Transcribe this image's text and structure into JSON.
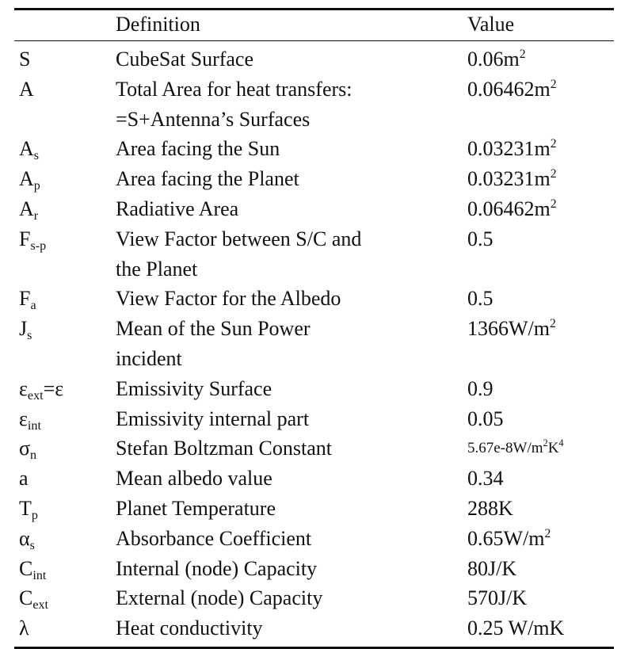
{
  "header": {
    "symbol": "",
    "definition": "Definition",
    "value": "Value"
  },
  "rows": [
    {
      "symbol": "S",
      "definition": [
        "CubeSat Surface"
      ],
      "value": "0.06m",
      "value_sup": "2"
    },
    {
      "symbol": "A",
      "definition": [
        "Total Area for heat transfers:",
        "=S+Antenna’s Surfaces"
      ],
      "value": "0.06462m",
      "value_sup": "2"
    },
    {
      "symbol": "A",
      "symbol_sub": "s",
      "definition": [
        "Area facing the Sun"
      ],
      "value": "0.03231m",
      "value_sup": "2"
    },
    {
      "symbol": "A",
      "symbol_sub": "p",
      "definition": [
        "Area facing the Planet"
      ],
      "value": "0.03231m",
      "value_sup": "2"
    },
    {
      "symbol": "A",
      "symbol_sub": "r",
      "definition": [
        "Radiative Area"
      ],
      "value": "0.06462m",
      "value_sup": "2"
    },
    {
      "symbol": "F",
      "symbol_sub": "s-p",
      "definition": [
        "View Factor between S/C and",
        "the Planet"
      ],
      "value": "0.5"
    },
    {
      "symbol": "F",
      "symbol_sub": "a",
      "definition": [
        "View Factor for the Albedo"
      ],
      "value": "0.5"
    },
    {
      "symbol": "J",
      "symbol_sub": "s",
      "definition": [
        "Mean of the Sun Power",
        "incident"
      ],
      "value": "1366W/m",
      "value_sup": "2"
    },
    {
      "symbol": "ε",
      "symbol_sub": "ext",
      "symbol_tail": "=ε",
      "definition": [
        "Emissivity Surface"
      ],
      "value": "0.9"
    },
    {
      "symbol": "ε",
      "symbol_sub": "int",
      "definition": [
        "Emissivity internal part"
      ],
      "value": "0.05"
    },
    {
      "symbol": "σ",
      "symbol_sub": "n",
      "definition": [
        "Stefan Boltzman Constant"
      ],
      "value": "5.67e-8W/m",
      "value_sup": "2",
      "value_tail": "K",
      "value_tail_sup": "4",
      "value_small": true
    },
    {
      "symbol": "a",
      "definition": [
        "Mean albedo value"
      ],
      "value": "0.34"
    },
    {
      "symbol": "T",
      "symbol_sub": "p",
      "definition": [
        "Planet Temperature"
      ],
      "value": "288K"
    },
    {
      "symbol": "α",
      "symbol_sub": "s",
      "definition": [
        "Absorbance Coefficient"
      ],
      "value": "0.65W/m",
      "value_sup": "2"
    },
    {
      "symbol": "C",
      "symbol_sub": "int",
      "definition": [
        "Internal (node) Capacity"
      ],
      "value": "80J/K"
    },
    {
      "symbol": "C",
      "symbol_sub": "ext",
      "definition": [
        "External (node) Capacity"
      ],
      "value": "570J/K"
    },
    {
      "symbol": "λ",
      "definition": [
        "Heat conductivity"
      ],
      "value": "0.25 W/mK"
    }
  ]
}
